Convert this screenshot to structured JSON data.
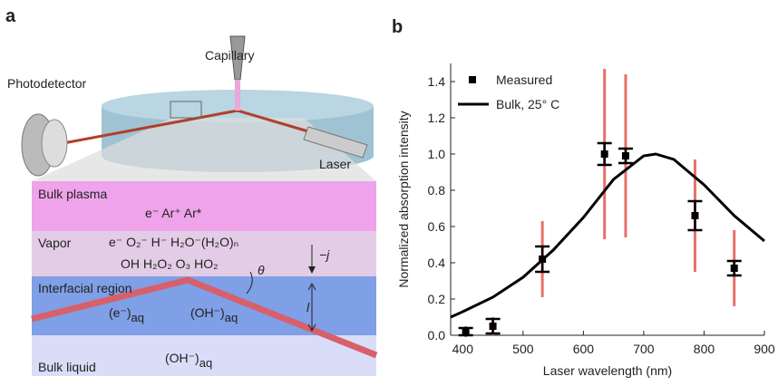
{
  "panel_a": {
    "label": "a",
    "capillary": "Capillary",
    "photodetector": "Photodetector",
    "laser": "Laser",
    "bulk_plasma": {
      "title": "Bulk plasma",
      "species": "e⁻    Ar⁺    Ar*"
    },
    "vapor": {
      "title": "Vapor",
      "line1": "e⁻    O₂⁻   H⁻    H₂O⁻(H₂O)ₙ",
      "line2": "OH    H₂O₂    O₃    HO₂",
      "current": "−j"
    },
    "interfacial": {
      "title": "Interfacial region",
      "electron": {
        "text": "(e⁻)",
        "sub": "aq"
      },
      "hydroxide": {
        "text": "(OH⁻)",
        "sub": "aq"
      },
      "length": "l",
      "angle": "θ"
    },
    "bulk_liquid": {
      "title": "Bulk liquid",
      "hydroxide": {
        "text": "(OH⁻)",
        "sub": "aq"
      }
    }
  },
  "chart_data": {
    "type": "errorbar",
    "panel_label": "b",
    "xlabel": "Laser wavelength (nm)",
    "ylabel": "Normalized absorption intensity",
    "xlim": [
      380,
      900
    ],
    "ylim": [
      0,
      1.5
    ],
    "xticks": [
      400,
      500,
      600,
      700,
      800,
      900
    ],
    "yticks": [
      {
        "value": 0,
        "label": "0.0"
      },
      0.2,
      0.4,
      0.6,
      0.8,
      {
        "value": 1,
        "label": "1.0"
      },
      1.2,
      1.4
    ],
    "legend": "top-left",
    "series": [
      {
        "name": "Measured",
        "color": "#000000",
        "x": [
          405,
          450,
          532,
          635,
          670,
          785,
          850
        ],
        "values": [
          0.02,
          0.05,
          0.42,
          1.0,
          0.99,
          0.66,
          0.37
        ],
        "errors": [
          0.02,
          0.04,
          0.07,
          0.06,
          0.04,
          0.08,
          0.04
        ],
        "wide_errors": [
          0.03,
          0.05,
          0.21,
          0.47,
          0.45,
          0.31,
          0.21
        ],
        "wide_error_color": "#e8706a"
      },
      {
        "name": "Bulk, 25° C",
        "color": "#000000",
        "x": [
          380,
          400,
          450,
          500,
          550,
          600,
          650,
          700,
          720,
          750,
          800,
          850,
          900
        ],
        "values": [
          0.1,
          0.13,
          0.21,
          0.32,
          0.47,
          0.65,
          0.86,
          0.99,
          1.0,
          0.97,
          0.83,
          0.66,
          0.52
        ]
      }
    ]
  }
}
